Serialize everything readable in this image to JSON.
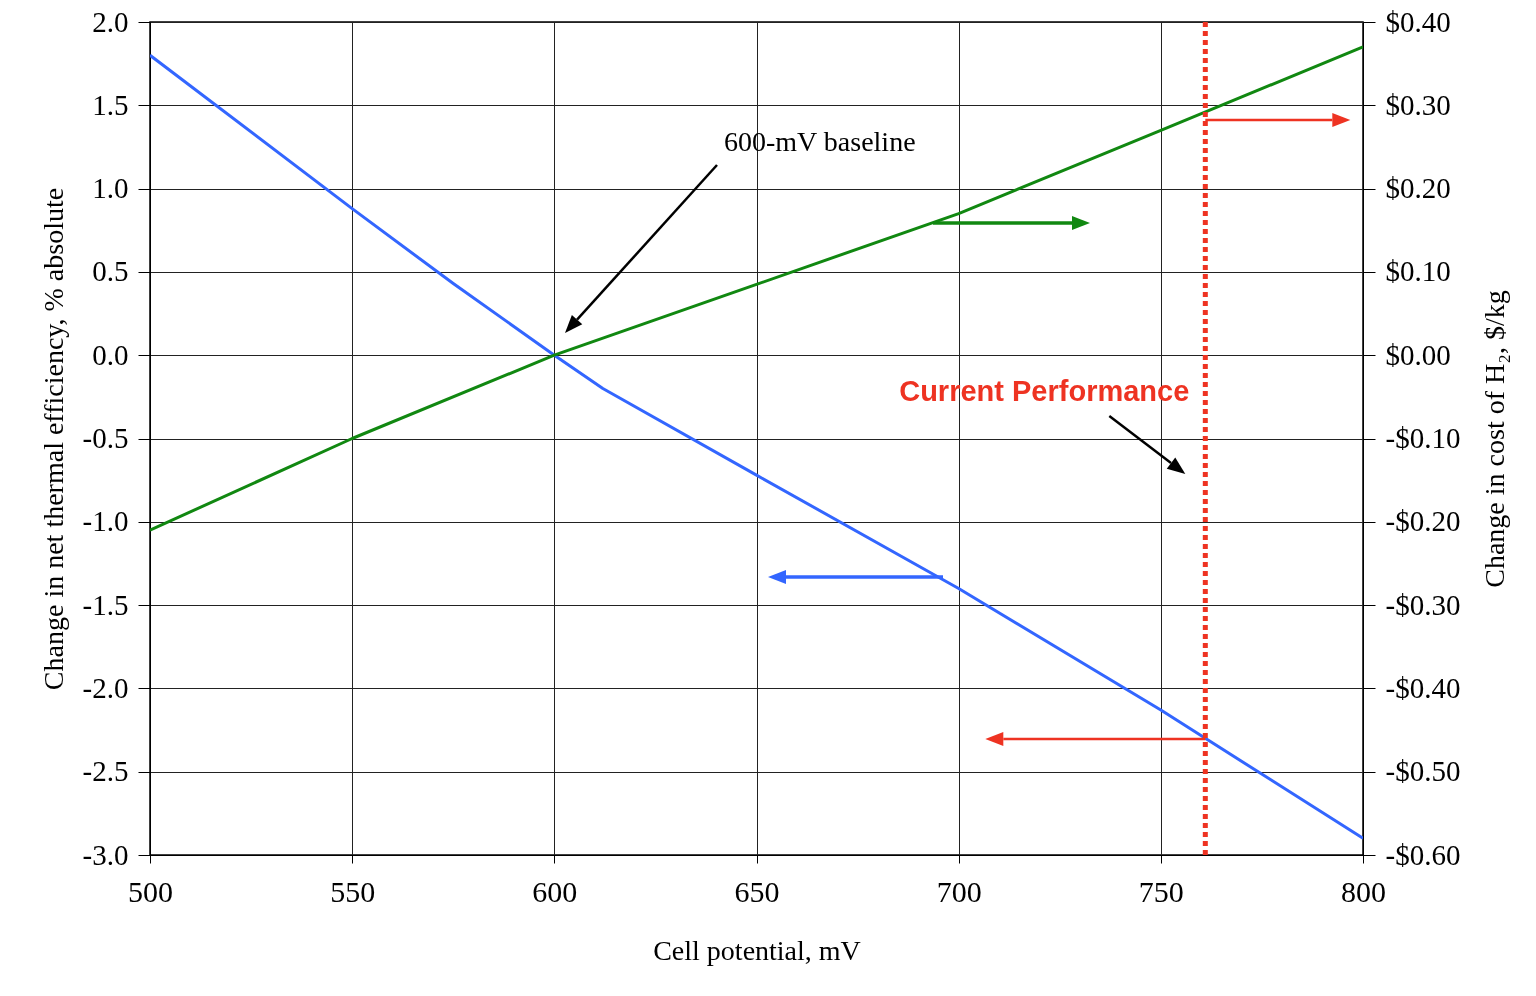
{
  "chart_data": {
    "type": "line",
    "xlabel": "Cell potential, mV",
    "ylabel": "Change in net thermal efficiency, % absolute",
    "y2label": "Change in cost of H₂, $/kg",
    "series": [
      {
        "color": "#3366ff",
        "x": [
          500,
          550,
          575,
          600,
          612,
          650,
          700,
          750,
          800
        ],
        "values": [
          1.8,
          0.88,
          0.43,
          0,
          -0.2,
          -0.72,
          -1.4,
          -2.13,
          -2.9
        ]
      },
      {
        "color": "#118811",
        "axis": "y2",
        "x": [
          500,
          550,
          600,
          650,
          700,
          750,
          800
        ],
        "values": [
          -0.21,
          -0.1,
          0,
          0.085,
          0.17,
          0.27,
          0.37
        ]
      }
    ],
    "xlim": [
      500,
      800
    ],
    "xticks": [
      500,
      550,
      600,
      650,
      700,
      750,
      800
    ],
    "ylim": [
      -3,
      2
    ],
    "yticks": [
      {
        "value": 2,
        "label": "2.0"
      },
      {
        "value": 1.5,
        "label": "1.5"
      },
      {
        "value": 1,
        "label": "1.0"
      },
      {
        "value": 0.5,
        "label": "0.5"
      },
      {
        "value": 0,
        "label": "0.0"
      },
      {
        "value": -0.5,
        "label": "-0.5"
      },
      {
        "value": -1,
        "label": "-1.0"
      },
      {
        "value": -1.5,
        "label": "-1.5"
      },
      {
        "value": -2,
        "label": "-2.0"
      },
      {
        "value": -2.5,
        "label": "-2.5"
      },
      {
        "value": -3,
        "label": "-3.0"
      }
    ],
    "y2lim": [
      -0.6,
      0.4
    ],
    "y2ticks": [
      {
        "value": 0.4,
        "label": "$0.40"
      },
      {
        "value": 0.3,
        "label": "$0.30"
      },
      {
        "value": 0.2,
        "label": "$0.20"
      },
      {
        "value": 0.1,
        "label": "$0.10"
      },
      {
        "value": 0,
        "label": "$0.00"
      },
      {
        "value": -0.1,
        "label": "-$0.10"
      },
      {
        "value": -0.2,
        "label": "-$0.20"
      },
      {
        "value": -0.3,
        "label": "-$0.30"
      },
      {
        "value": -0.4,
        "label": "-$0.40"
      },
      {
        "value": -0.5,
        "label": "-$0.50"
      },
      {
        "value": -0.6,
        "label": "-$0.60"
      }
    ],
    "ref_lines": [
      {
        "axis": "x",
        "value": 761,
        "label": "Current Performance",
        "color": "#ee3322",
        "line_style": "dotted"
      }
    ],
    "annotations": [
      "600-mV baseline"
    ],
    "grid": true
  }
}
